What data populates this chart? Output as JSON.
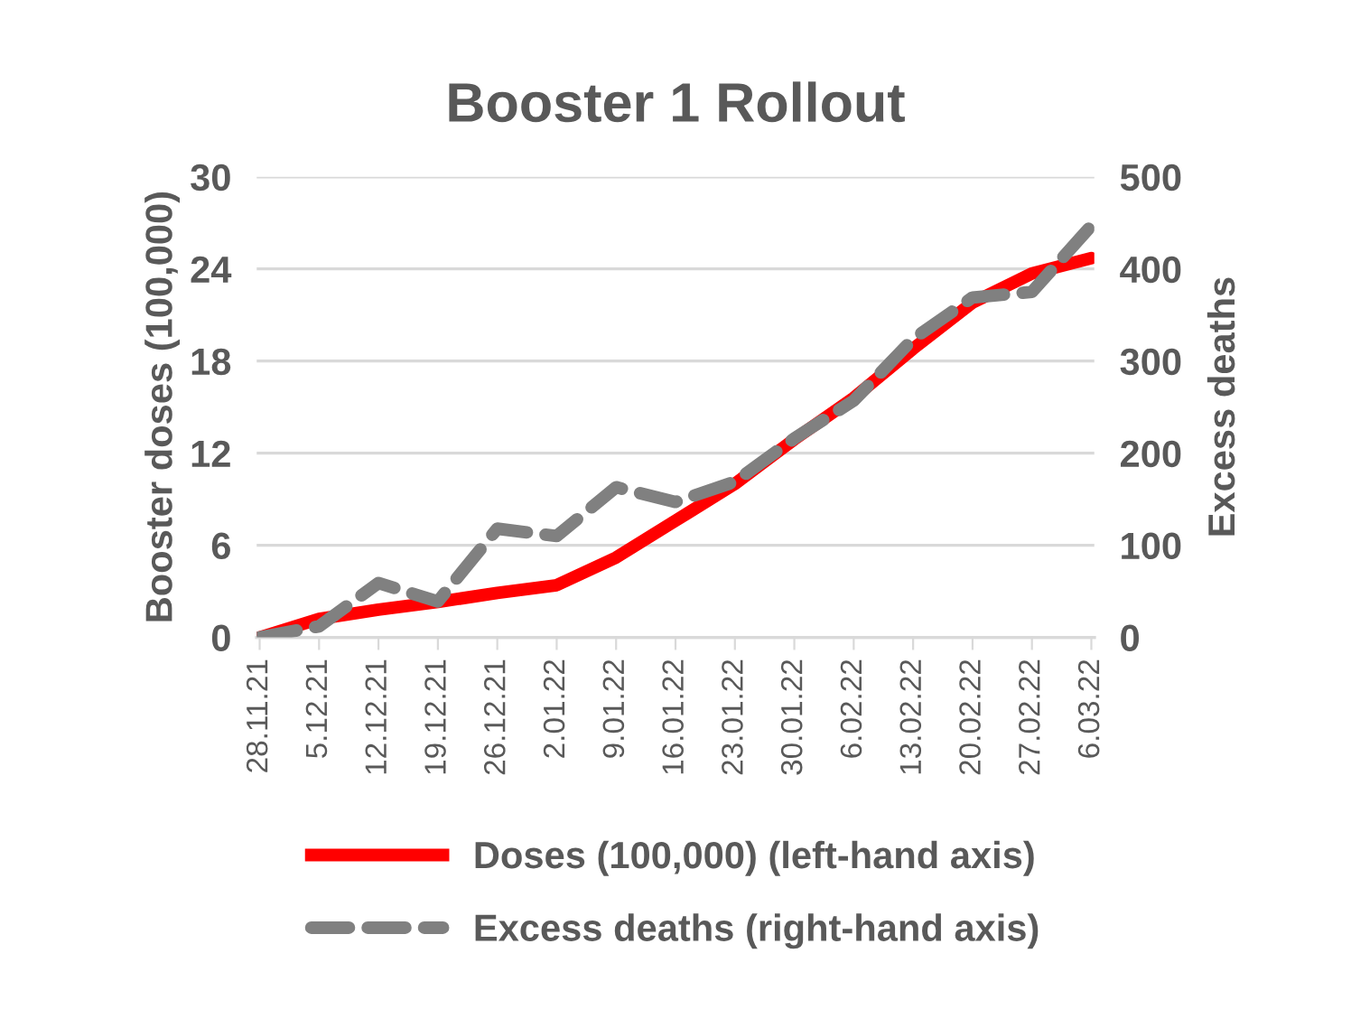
{
  "chart_data": {
    "type": "line",
    "title": "Booster 1 Rollout",
    "ylabel": "Booster doses (100,000)",
    "y2label": "Excess deaths",
    "categories": [
      "28.11.21",
      "5.12.21",
      "12.12.21",
      "19.12.21",
      "26.12.21",
      "2.01.22",
      "9.01.22",
      "16.01.22",
      "23.01.22",
      "30.01.22",
      "6.02.22",
      "13.02.22",
      "20.02.22",
      "27.02.22",
      "6.03.22"
    ],
    "series": [
      {
        "name": "Doses (100,000) (left-hand axis)",
        "color": "#ff0000",
        "line_style": "solid",
        "values": [
          0,
          1.2,
          1.8,
          2.3,
          2.9,
          3.4,
          5.2,
          7.6,
          10.0,
          12.9,
          15.6,
          18.8,
          21.8,
          23.7,
          24.7
        ]
      },
      {
        "name": "Excess deaths (right-hand axis)",
        "color": "#808080",
        "line_style": "dashed",
        "axis": "y2",
        "values": [
          0,
          12,
          59,
          39,
          118,
          110,
          163,
          147,
          169,
          216,
          257,
          324,
          369,
          375,
          447
        ]
      }
    ],
    "ylim": [
      0,
      30
    ],
    "yticks": [
      0,
      6,
      12,
      18,
      24,
      30
    ],
    "y2lim": [
      0,
      500
    ],
    "y2ticks": [
      0,
      100,
      200,
      300,
      400,
      500
    ],
    "grid": "y",
    "legend": "bottom",
    "marker": "none"
  }
}
